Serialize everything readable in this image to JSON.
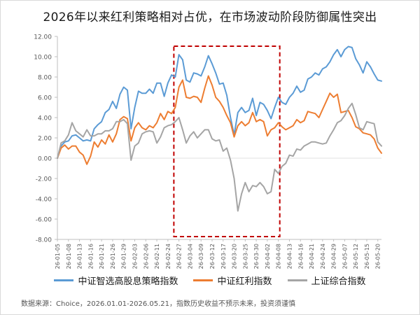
{
  "title": "2026年以来红利策略相对占优，在市场波动阶段防御属性突出",
  "source": "数据来源：Choice，2026.01.01-2026.05.21，指数历史收益不预示未来，投资须谨慎",
  "colors": {
    "series1": "#5b9bd5",
    "series2": "#ed7d31",
    "series3": "#a5a5a5",
    "highlight_box": "#c00000",
    "axis": "#bfbfbf",
    "text": "#595959"
  },
  "chart_data": {
    "type": "line",
    "ylim": [
      -8,
      12
    ],
    "yticks": [
      "12.00",
      "10.00",
      "8.00",
      "6.00",
      "4.00",
      "2.00",
      "0.00",
      "-2.00",
      "-4.00",
      "-6.00",
      "-8.00"
    ],
    "ytick_values": [
      12,
      10,
      8,
      6,
      4,
      2,
      0,
      -2,
      -4,
      -6,
      -8
    ],
    "x": [
      "26-01-05",
      "26-01-06",
      "26-01-07",
      "26-01-08",
      "26-01-09",
      "26-01-12",
      "26-01-13",
      "26-01-14",
      "26-01-15",
      "26-01-16",
      "26-01-19",
      "26-01-20",
      "26-01-21",
      "26-01-22",
      "26-01-23",
      "26-01-26",
      "26-01-27",
      "26-01-28",
      "26-01-29",
      "26-01-30",
      "26-02-02",
      "26-02-03",
      "26-02-04",
      "26-02-05",
      "26-02-06",
      "26-02-09",
      "26-02-10",
      "26-02-11",
      "26-02-12",
      "26-02-13",
      "26-02-24",
      "26-02-25",
      "26-02-26",
      "26-02-27",
      "26-03-02",
      "26-03-03",
      "26-03-04",
      "26-03-05",
      "26-03-06",
      "26-03-09",
      "26-03-10",
      "26-03-11",
      "26-03-12",
      "26-03-13",
      "26-03-16",
      "26-03-17",
      "26-03-18",
      "26-03-19",
      "26-03-20",
      "26-03-23",
      "26-03-24",
      "26-03-25",
      "26-03-26",
      "26-03-27",
      "26-03-30",
      "26-03-31",
      "26-04-01",
      "26-04-02",
      "26-04-03",
      "26-04-07",
      "26-04-08",
      "26-04-09",
      "26-04-10",
      "26-04-13",
      "26-04-14",
      "26-04-15",
      "26-04-16",
      "26-04-17",
      "26-04-20",
      "26-04-21",
      "26-04-22",
      "26-04-23",
      "26-04-24",
      "26-04-27",
      "26-04-28",
      "26-04-29",
      "26-04-30",
      "26-05-06",
      "26-05-07",
      "26-05-08",
      "26-05-11",
      "26-05-12",
      "26-05-13",
      "26-05-14",
      "26-05-15",
      "26-05-18",
      "26-05-19",
      "26-05-20",
      "26-05-21"
    ],
    "xtick_labels": [
      "26-01-05",
      "26-01-08",
      "26-01-13",
      "26-01-16",
      "26-01-21",
      "26-01-26",
      "26-01-29",
      "26-02-03",
      "26-02-06",
      "26-02-11",
      "26-02-24",
      "26-02-27",
      "26-03-04",
      "26-03-09",
      "26-03-12",
      "26-03-17",
      "26-03-20",
      "26-03-25",
      "26-03-30",
      "26-04-02",
      "26-04-08",
      "26-04-13",
      "26-04-16",
      "26-04-21",
      "26-04-24",
      "26-04-29",
      "26-05-07",
      "26-05-12",
      "26-05-15",
      "26-05-20"
    ],
    "highlight_range": [
      "26-02-26",
      "26-04-08"
    ],
    "legend_position": "bottom",
    "series": [
      {
        "name": "中证智选高股息策略指数",
        "values": [
          0.0,
          1.2,
          1.6,
          1.7,
          2.2,
          2.3,
          2.0,
          1.7,
          1.8,
          1.7,
          2.9,
          3.3,
          3.6,
          4.5,
          4.8,
          5.6,
          4.9,
          6.3,
          7.0,
          6.7,
          2.9,
          5.0,
          6.6,
          6.4,
          6.4,
          6.8,
          6.4,
          7.4,
          7.4,
          6.1,
          7.4,
          8.2,
          8.0,
          10.2,
          9.7,
          7.7,
          7.5,
          8.4,
          8.3,
          8.1,
          9.0,
          10.1,
          9.3,
          8.4,
          7.3,
          7.4,
          6.2,
          4.0,
          2.3,
          4.5,
          5.0,
          4.5,
          4.7,
          5.9,
          4.2,
          5.5,
          5.3,
          4.7,
          3.9,
          5.0,
          6.0,
          5.5,
          5.3,
          6.0,
          6.4,
          7.1,
          6.5,
          6.7,
          7.8,
          8.0,
          8.4,
          8.2,
          8.8,
          9.0,
          9.5,
          10.2,
          10.7,
          10.0,
          10.7,
          11.0,
          10.9,
          9.8,
          9.2,
          8.4,
          9.5,
          9.0,
          8.3,
          7.7,
          7.6
        ],
        "color": "#5b9bd5"
      },
      {
        "name": "中证红利指数",
        "values": [
          0.0,
          1.0,
          1.3,
          0.9,
          1.2,
          1.2,
          0.6,
          0.3,
          -0.6,
          0.2,
          1.6,
          1.1,
          1.8,
          1.4,
          2.3,
          1.6,
          2.4,
          3.8,
          4.1,
          3.9,
          1.7,
          3.0,
          3.5,
          3.0,
          2.8,
          3.2,
          3.0,
          3.5,
          4.4,
          3.8,
          4.6,
          4.4,
          5.0,
          7.0,
          7.7,
          6.0,
          5.9,
          6.1,
          6.0,
          5.5,
          6.9,
          8.1,
          7.2,
          6.0,
          5.6,
          5.0,
          4.2,
          3.5,
          2.1,
          3.2,
          3.6,
          3.2,
          3.5,
          4.5,
          3.6,
          3.8,
          3.6,
          2.2,
          2.8,
          3.0,
          3.5,
          3.1,
          2.8,
          3.0,
          3.2,
          3.8,
          3.5,
          3.7,
          4.6,
          4.5,
          4.4,
          4.0,
          4.8,
          5.6,
          6.4,
          6.0,
          6.3,
          4.5,
          4.6,
          4.7,
          4.0,
          3.1,
          2.9,
          2.5,
          2.4,
          2.3,
          1.9,
          1.0,
          0.5
        ],
        "color": "#ed7d31"
      },
      {
        "name": "上证综合指数",
        "values": [
          0.0,
          1.5,
          1.7,
          2.3,
          3.5,
          2.7,
          2.4,
          2.1,
          2.8,
          2.2,
          2.2,
          2.4,
          2.4,
          2.7,
          2.7,
          2.9,
          3.6,
          3.6,
          3.8,
          3.4,
          -0.2,
          1.2,
          1.5,
          2.4,
          2.6,
          2.7,
          2.6,
          1.5,
          2.1,
          3.0,
          3.2,
          3.3,
          3.6,
          4.0,
          2.8,
          1.5,
          2.2,
          2.6,
          2.0,
          2.4,
          2.8,
          2.8,
          1.9,
          1.7,
          1.8,
          0.7,
          1.0,
          -0.2,
          -2.0,
          -5.2,
          -3.5,
          -2.4,
          -3.3,
          -2.7,
          -2.8,
          -2.4,
          -2.8,
          -3.5,
          -3.3,
          -1.1,
          -1.5,
          -0.8,
          -0.5,
          0.3,
          0.2,
          0.9,
          0.8,
          1.2,
          1.4,
          1.6,
          1.6,
          1.5,
          1.4,
          1.5,
          2.2,
          2.8,
          3.5,
          3.7,
          4.2,
          4.9,
          5.4,
          4.3,
          3.0,
          2.8,
          3.6,
          3.5,
          3.4,
          1.6,
          1.2
        ],
        "color": "#a5a5a5"
      }
    ]
  }
}
